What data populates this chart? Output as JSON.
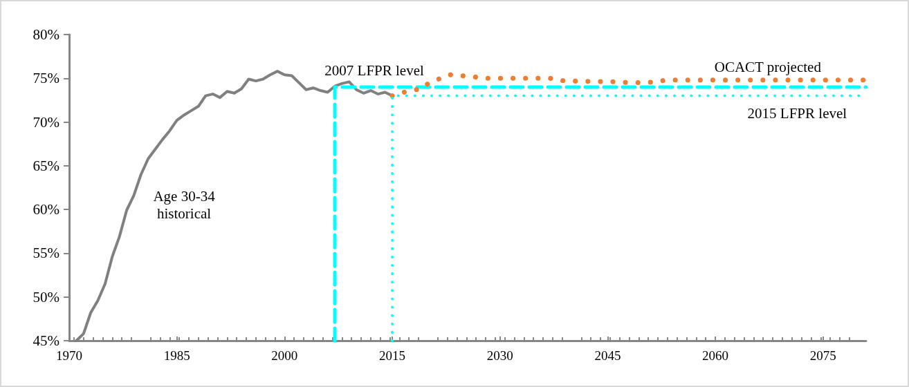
{
  "chart_data": {
    "type": "line",
    "xlim": [
      1970,
      2081
    ],
    "xticks": [
      1970,
      1985,
      2000,
      2015,
      2030,
      2045,
      2060,
      2075
    ],
    "ylim": [
      45,
      80
    ],
    "yticks": [
      {
        "value": 45,
        "label": "45%"
      },
      {
        "value": 50,
        "label": "50%"
      },
      {
        "value": 55,
        "label": "55%"
      },
      {
        "value": 60,
        "label": "60%"
      },
      {
        "value": 65,
        "label": "65%"
      },
      {
        "value": 70,
        "label": "70%"
      },
      {
        "value": 75,
        "label": "75%"
      },
      {
        "value": 80,
        "label": "80%"
      }
    ],
    "grid": false,
    "legend": false,
    "marker": "none",
    "series": [
      {
        "name": "Age 30-34 historical",
        "color": "#808080",
        "line_style": "solid",
        "x": [
          1971,
          1972,
          1973,
          1974,
          1975,
          1976,
          1977,
          1978,
          1979,
          1980,
          1981,
          1982,
          1983,
          1984,
          1985,
          1986,
          1987,
          1988,
          1989,
          1990,
          1991,
          1992,
          1993,
          1994,
          1995,
          1996,
          1997,
          1998,
          1999,
          2000,
          2001,
          2002,
          2003,
          2004,
          2005,
          2006,
          2007,
          2008,
          2009,
          2010,
          2011,
          2012,
          2013,
          2014,
          2015
        ],
        "values": [
          45.0,
          45.8,
          48.2,
          49.6,
          51.5,
          54.6,
          56.9,
          59.9,
          61.6,
          64.0,
          65.8,
          66.9,
          68.0,
          69.0,
          70.2,
          70.8,
          71.3,
          71.8,
          73.0,
          73.2,
          72.8,
          73.5,
          73.3,
          73.8,
          74.9,
          74.7,
          74.9,
          75.4,
          75.8,
          75.4,
          75.3,
          74.5,
          73.7,
          73.9,
          73.6,
          73.4,
          74.1,
          74.4,
          74.6,
          73.7,
          73.3,
          73.6,
          73.2,
          73.4,
          73.0
        ]
      },
      {
        "name": "2007 LFPR level",
        "color": "#00ffff",
        "line_style": "dashed",
        "x": [
          2007,
          2007,
          2081
        ],
        "values": [
          45,
          74.0,
          74.0
        ]
      },
      {
        "name": "OCACT projected",
        "color": "#ed7d31",
        "line_style": "dotted",
        "x": [
          2015,
          2017,
          2019,
          2020,
          2022,
          2023,
          2026,
          2028,
          2037,
          2039,
          2046,
          2048,
          2050,
          2052,
          2053,
          2081
        ],
        "values": [
          73.0,
          73.5,
          73.8,
          74.4,
          75.1,
          75.4,
          75.2,
          75.0,
          75.0,
          74.7,
          74.6,
          74.5,
          74.5,
          74.6,
          74.8,
          74.8
        ]
      },
      {
        "name": "2015 LFPR level",
        "color": "#00ffff",
        "line_style": "dotted",
        "x": [
          2015,
          2015,
          2081
        ],
        "values": [
          45,
          73.0,
          73.0
        ]
      }
    ]
  }
}
